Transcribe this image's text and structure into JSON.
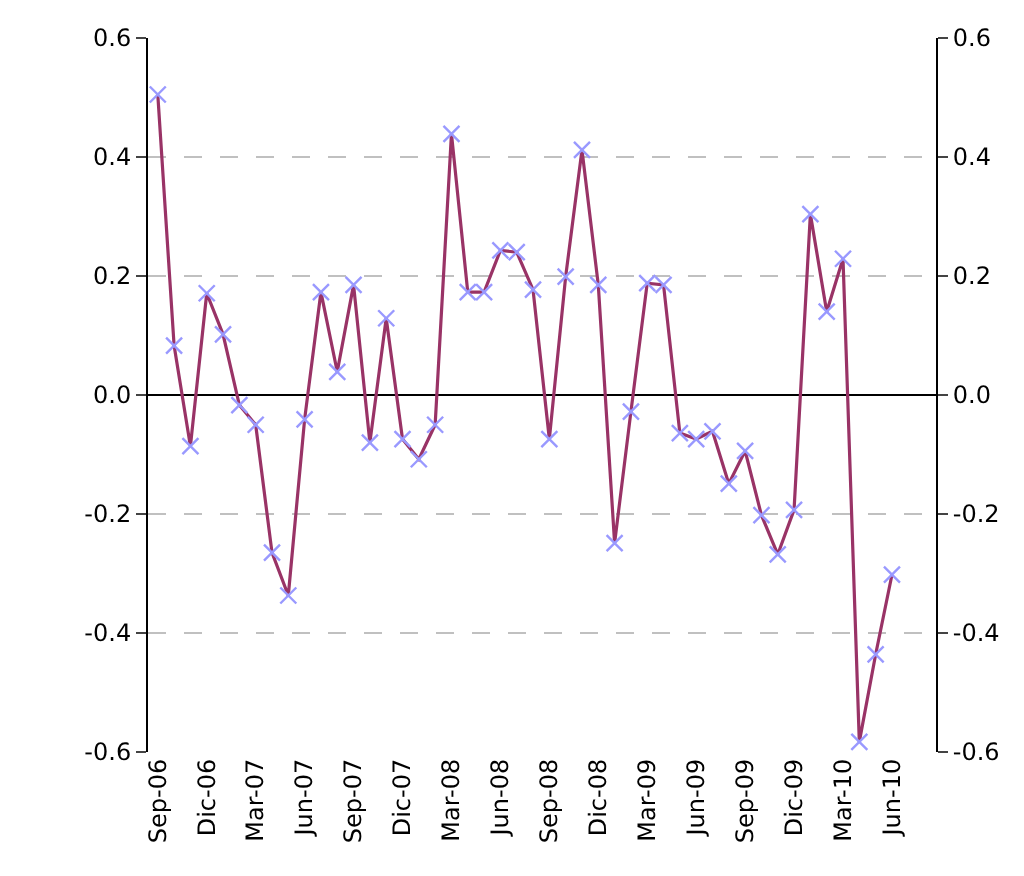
{
  "chart_data": {
    "type": "line",
    "categories": [
      "Sep-06",
      null,
      null,
      "Dic-06",
      null,
      null,
      "Mar-07",
      null,
      null,
      "Jun-07",
      null,
      null,
      "Sep-07",
      null,
      null,
      "Dic-07",
      null,
      null,
      "Mar-08",
      null,
      null,
      "Jun-08",
      null,
      null,
      "Sep-08",
      null,
      null,
      "Dic-08",
      null,
      null,
      "Mar-09",
      null,
      null,
      "Jun-09",
      null,
      null,
      "Sep-09",
      null,
      null,
      "Dic-09",
      null,
      null,
      "Mar-10",
      null,
      null,
      "Jun-10"
    ],
    "series": [
      {
        "color": "#993366",
        "colors": [
          "#9999ff",
          "#9999ff",
          "#9999ff",
          "#9999ff",
          "#9999ff",
          "#9999ff",
          "#9999ff",
          "#9999ff",
          "#9999ff",
          "#9999ff",
          "#9999ff",
          "#9999ff",
          "#9999ff",
          "#9999ff",
          "#9999ff",
          "#9999ff",
          "#9999ff",
          "#9999ff",
          "#9999ff",
          "#9999ff",
          "#9999ff",
          "#9999ff",
          "#9999ff",
          "#9999ff",
          "#9999ff",
          "#9999ff",
          "#9999ff",
          "#9999ff",
          "#9999ff",
          "#9999ff",
          "#9999ff",
          "#9999ff",
          "#9999ff",
          "#9999ff",
          "#9999ff",
          "#9999ff",
          "#9999ff",
          "#9999ff",
          "#9999ff",
          "#9999ff",
          "#9999ff",
          "#9999ff",
          "#9999ff",
          "#9999ff",
          "#9999ff",
          "#9999ff"
        ],
        "values": [
          0.505,
          0.083,
          -0.086,
          0.171,
          0.102,
          -0.017,
          -0.05,
          -0.265,
          -0.337,
          -0.041,
          0.173,
          0.039,
          0.185,
          -0.08,
          0.129,
          -0.074,
          -0.108,
          -0.05,
          0.439,
          0.173,
          0.173,
          0.243,
          0.24,
          0.177,
          -0.074,
          0.199,
          0.412,
          0.185,
          -0.249,
          -0.028,
          0.188,
          0.185,
          -0.064,
          -0.074,
          -0.061,
          -0.149,
          -0.094,
          -0.202,
          -0.268,
          -0.193,
          0.304,
          0.14,
          0.229,
          -0.583,
          -0.436,
          -0.302
        ]
      }
    ],
    "ylim": [
      -0.6,
      0.6
    ],
    "yticks": [
      {
        "value": -0.6,
        "label": "-0.6"
      },
      {
        "value": -0.4,
        "label": "-0.4"
      },
      {
        "value": -0.2,
        "label": "-0.2"
      },
      {
        "value": 0,
        "label": "0.0"
      },
      0.2,
      0.4,
      0.6
    ],
    "y2lim": [
      -0.6,
      0.6
    ],
    "y2ticks": [
      {
        "value": -0.6,
        "label": "-0.6"
      },
      {
        "value": -0.4,
        "label": "-0.4"
      },
      {
        "value": -0.2,
        "label": "-0.2"
      },
      {
        "value": 0,
        "label": "0.0"
      },
      0.2,
      0.4,
      0.6
    ],
    "grid": "y",
    "marker": "cross",
    "line_style": "solid"
  }
}
